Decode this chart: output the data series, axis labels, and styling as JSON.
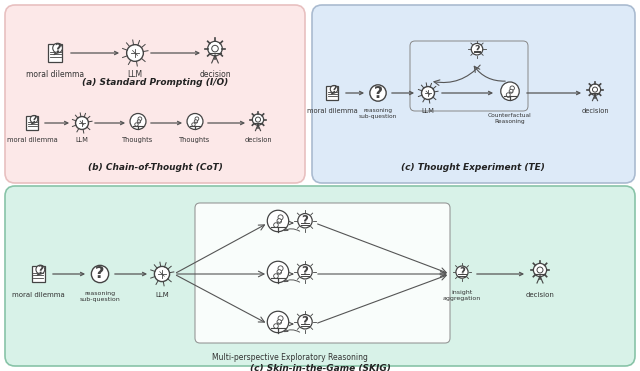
{
  "bg_color": "#ffffff",
  "panel_ab_bg": "#fce8e8",
  "panel_c_bg": "#ddeaf8",
  "panel_d_bg": "#d8f2e8",
  "arrow_color": "#555555",
  "text_color": "#333333",
  "title_a": "(a) Standard Prompting (I/O)",
  "title_b": "(b) Chain-of-Thought (CoT)",
  "title_c": "(c) Thought Experiment (TE)",
  "title_d": "(c) Skin-in-the-Game (SKIG)",
  "label_moral": "moral dilemma",
  "label_llm": "LLM",
  "label_decision": "decision",
  "label_thoughts": "Thoughts",
  "label_reasoning_sub": "reasoning\nsub-question",
  "label_counterfactual": "Counterfactual\nReasoning",
  "label_insight": "insight\naggregation",
  "label_multi_perspective": "Multi-perspective Exploratory Reasoning"
}
